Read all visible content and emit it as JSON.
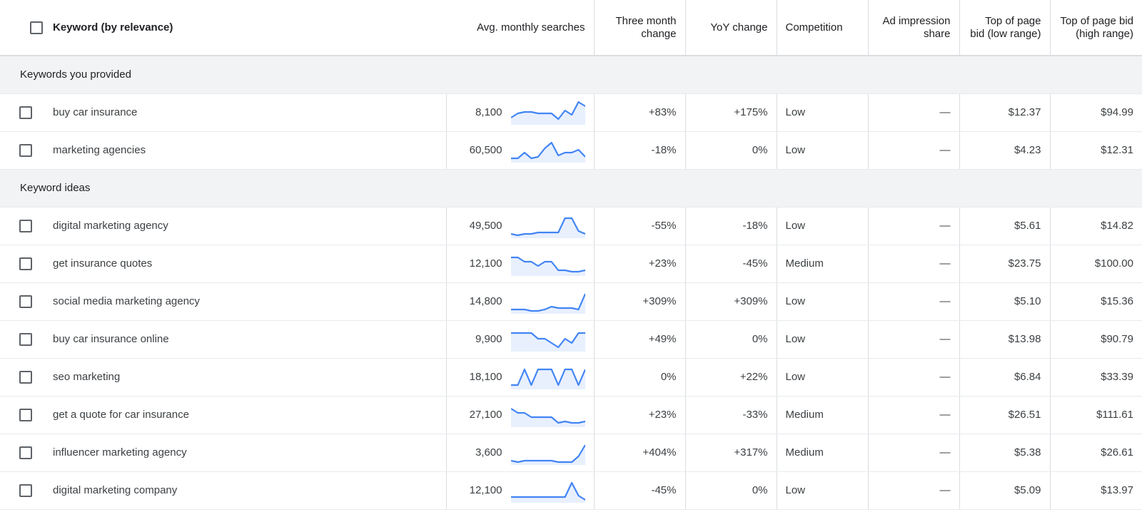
{
  "columns": {
    "keyword": "Keyword (by relevance)",
    "searches": "Avg. monthly searches",
    "three_month": "Three month change",
    "yoy": "YoY change",
    "competition": "Competition",
    "ad_share": "Ad impression share",
    "bid_low": "Top of page bid (low range)",
    "bid_high": "Top of page bid (high range)"
  },
  "colors": {
    "trend_line": "#4285f4",
    "trend_fill": "#e8f0fe",
    "section_bg": "#f1f3f4"
  },
  "sections": [
    {
      "title": "Keywords you provided",
      "rows": [
        {
          "keyword": "buy car insurance",
          "searches": "8,100",
          "trend": [
            4,
            7,
            8,
            8,
            7,
            7,
            7,
            3,
            9,
            6,
            15,
            12
          ],
          "three_month": "+83%",
          "yoy": "+175%",
          "competition": "Low",
          "ad_share": "—",
          "bid_low": "$12.37",
          "bid_high": "$94.99"
        },
        {
          "keyword": "marketing agencies",
          "searches": "60,500",
          "trend": [
            2,
            2,
            6,
            2,
            3,
            9,
            13,
            4,
            6,
            6,
            8,
            3
          ],
          "three_month": "-18%",
          "yoy": "0%",
          "competition": "Low",
          "ad_share": "—",
          "bid_low": "$4.23",
          "bid_high": "$12.31"
        }
      ]
    },
    {
      "title": "Keyword ideas",
      "rows": [
        {
          "keyword": "digital marketing agency",
          "searches": "49,500",
          "trend": [
            2,
            1,
            2,
            2,
            3,
            3,
            3,
            3,
            13,
            13,
            4,
            2
          ],
          "three_month": "-55%",
          "yoy": "-18%",
          "competition": "Low",
          "ad_share": "—",
          "bid_low": "$5.61",
          "bid_high": "$14.82"
        },
        {
          "keyword": "get insurance quotes",
          "searches": "12,100",
          "trend": [
            12,
            12,
            9,
            9,
            6,
            9,
            9,
            3,
            3,
            2,
            2,
            3
          ],
          "three_month": "+23%",
          "yoy": "-45%",
          "competition": "Medium",
          "ad_share": "—",
          "bid_low": "$23.75",
          "bid_high": "$100.00"
        },
        {
          "keyword": "social media marketing agency",
          "searches": "14,800",
          "trend": [
            2,
            2,
            2,
            1,
            1,
            2,
            4,
            3,
            3,
            3,
            2,
            13
          ],
          "three_month": "+309%",
          "yoy": "+309%",
          "competition": "Low",
          "ad_share": "—",
          "bid_low": "$5.10",
          "bid_high": "$15.36"
        },
        {
          "keyword": "buy car insurance online",
          "searches": "9,900",
          "trend": [
            12,
            12,
            12,
            12,
            8,
            8,
            5,
            2,
            8,
            5,
            12,
            12
          ],
          "three_month": "+49%",
          "yoy": "0%",
          "competition": "Low",
          "ad_share": "—",
          "bid_low": "$13.98",
          "bid_high": "$90.79"
        },
        {
          "keyword": "seo marketing",
          "searches": "18,100",
          "trend": [
            2,
            2,
            13,
            2,
            13,
            13,
            13,
            2,
            13,
            13,
            2,
            13
          ],
          "three_month": "0%",
          "yoy": "+22%",
          "competition": "Low",
          "ad_share": "—",
          "bid_low": "$6.84",
          "bid_high": "$33.39"
        },
        {
          "keyword": "get a quote for car insurance",
          "searches": "27,100",
          "trend": [
            12,
            9,
            9,
            6,
            6,
            6,
            6,
            2,
            3,
            2,
            2,
            3
          ],
          "three_month": "+23%",
          "yoy": "-33%",
          "competition": "Medium",
          "ad_share": "—",
          "bid_low": "$26.51",
          "bid_high": "$111.61"
        },
        {
          "keyword": "influencer marketing agency",
          "searches": "3,600",
          "trend": [
            2,
            1,
            2,
            2,
            2,
            2,
            2,
            1,
            1,
            1,
            5,
            13
          ],
          "three_month": "+404%",
          "yoy": "+317%",
          "competition": "Medium",
          "ad_share": "—",
          "bid_low": "$5.38",
          "bid_high": "$26.61"
        },
        {
          "keyword": "digital marketing company",
          "searches": "12,100",
          "trend": [
            3,
            3,
            3,
            3,
            3,
            3,
            3,
            3,
            3,
            13,
            4,
            1
          ],
          "three_month": "-45%",
          "yoy": "0%",
          "competition": "Low",
          "ad_share": "—",
          "bid_low": "$5.09",
          "bid_high": "$13.97"
        }
      ]
    }
  ]
}
